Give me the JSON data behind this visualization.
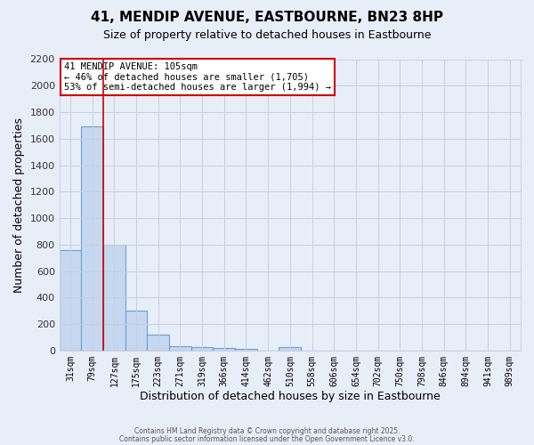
{
  "title": "41, MENDIP AVENUE, EASTBOURNE, BN23 8HP",
  "subtitle": "Size of property relative to detached houses in Eastbourne",
  "xlabel": "Distribution of detached houses by size in Eastbourne",
  "ylabel": "Number of detached properties",
  "categories": [
    "31sqm",
    "79sqm",
    "127sqm",
    "175sqm",
    "223sqm",
    "271sqm",
    "319sqm",
    "366sqm",
    "414sqm",
    "462sqm",
    "510sqm",
    "558sqm",
    "606sqm",
    "654sqm",
    "702sqm",
    "750sqm",
    "798sqm",
    "846sqm",
    "894sqm",
    "941sqm",
    "989sqm"
  ],
  "values": [
    760,
    1690,
    800,
    300,
    120,
    35,
    27,
    20,
    15,
    0,
    25,
    0,
    0,
    0,
    0,
    0,
    0,
    0,
    0,
    0,
    0
  ],
  "bar_color": "#c5d8f0",
  "bar_edge_color": "#6b9fd4",
  "grid_color": "#c8cfe0",
  "background_color": "#e8eef8",
  "vline_color": "#cc0000",
  "annotation_text": "41 MENDIP AVENUE: 105sqm\n← 46% of detached houses are smaller (1,705)\n53% of semi-detached houses are larger (1,994) →",
  "annotation_box_color": "#ffffff",
  "annotation_box_edge": "#cc0000",
  "ylim": [
    0,
    2200
  ],
  "yticks": [
    0,
    200,
    400,
    600,
    800,
    1000,
    1200,
    1400,
    1600,
    1800,
    2000,
    2200
  ],
  "footer1": "Contains HM Land Registry data © Crown copyright and database right 2025.",
  "footer2": "Contains public sector information licensed under the Open Government Licence v3.0."
}
